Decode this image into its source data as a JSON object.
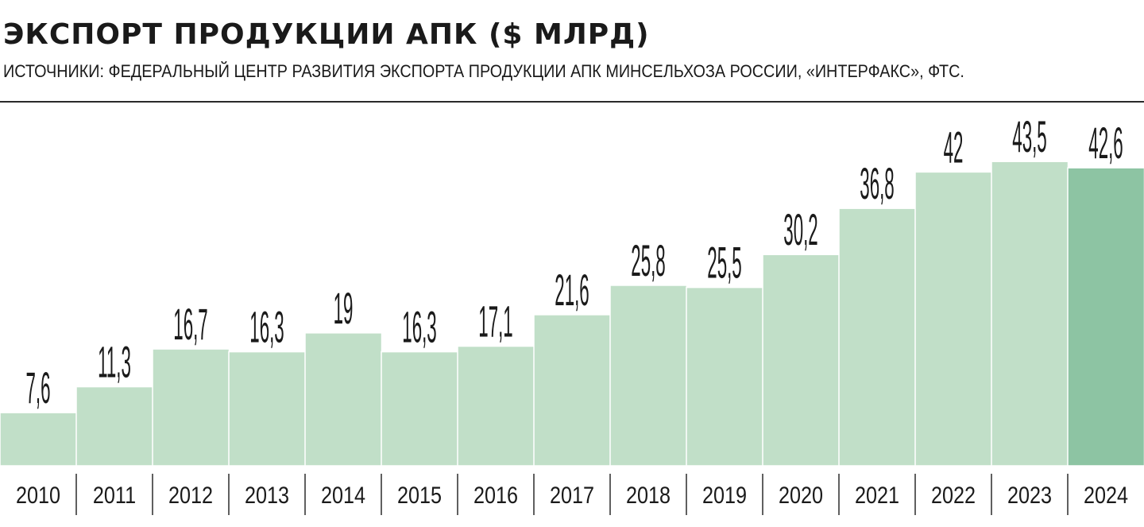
{
  "title": "ЭКСПОРТ ПРОДУКЦИИ АПК ($ МЛРД)",
  "subtitle": "ИСТОЧНИКИ: ФЕДЕРАЛЬНЫЙ ЦЕНТР РАЗВИТИЯ ЭКСПОРТА ПРОДУКЦИИ АПК МИНСЕЛЬХОЗА РОССИИ, «ИНТЕРФАКС», ФТС.",
  "colors": {
    "bar": "#c1dfc8",
    "highlight": "#8dc4a3",
    "divider": "#2a2a2a"
  },
  "chart_data": {
    "type": "bar",
    "categories": [
      "2010",
      "2011",
      "2012",
      "2013",
      "2014",
      "2015",
      "2016",
      "2017",
      "2018",
      "2019",
      "2020",
      "2021",
      "2022",
      "2023",
      "2024"
    ],
    "values": [
      7.6,
      11.3,
      16.7,
      16.3,
      19,
      16.3,
      17.1,
      21.6,
      25.8,
      25.5,
      30.2,
      36.8,
      42,
      43.5,
      42.6
    ],
    "value_labels": [
      "7,6",
      "11,3",
      "16,7",
      "16,3",
      "19",
      "16,3",
      "17,1",
      "21,6",
      "25,8",
      "25,5",
      "30,2",
      "36,8",
      "42",
      "43,5",
      "42,6"
    ],
    "highlight_index": 14,
    "ylim": [
      0,
      50
    ],
    "grid": false,
    "legend": "none"
  }
}
